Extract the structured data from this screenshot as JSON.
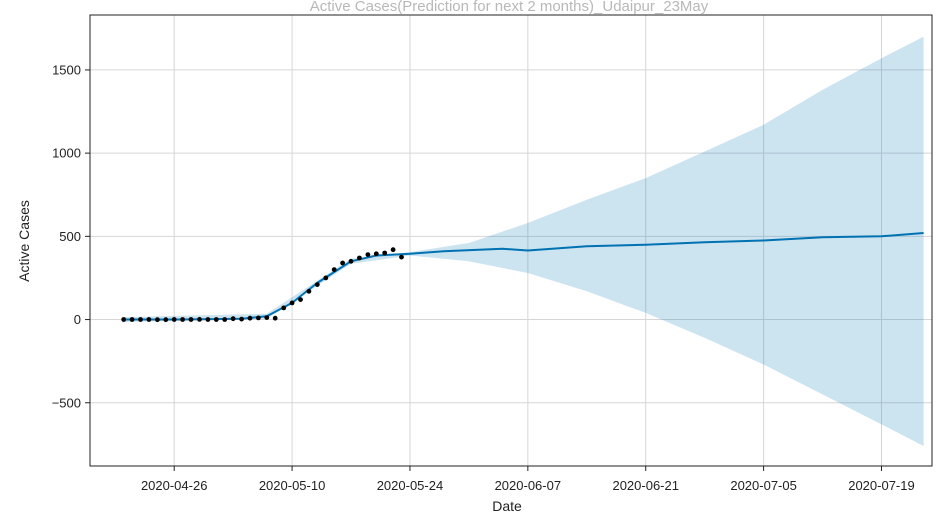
{
  "chart_data": {
    "type": "line",
    "title": "Active Cases(Prediction for next 2 months)_Udaipur_23May",
    "xlabel": "Date",
    "ylabel": "Active Cases",
    "xlim": [
      "2020-04-16",
      "2020-07-25"
    ],
    "ylim": [
      -880,
      1830
    ],
    "x_ticks": [
      "2020-04-26",
      "2020-05-10",
      "2020-05-24",
      "2020-06-07",
      "2020-06-21",
      "2020-07-05",
      "2020-07-19"
    ],
    "y_ticks": [
      -500,
      0,
      500,
      1000,
      1500
    ],
    "grid": true,
    "colors": {
      "observed": "#000000",
      "forecast": "#0072b2",
      "interval": "#0072b2"
    },
    "observed": {
      "x": [
        "2020-04-20",
        "2020-04-21",
        "2020-04-22",
        "2020-04-23",
        "2020-04-24",
        "2020-04-25",
        "2020-04-26",
        "2020-04-27",
        "2020-04-28",
        "2020-04-29",
        "2020-04-30",
        "2020-05-01",
        "2020-05-02",
        "2020-05-03",
        "2020-05-04",
        "2020-05-05",
        "2020-05-06",
        "2020-05-07",
        "2020-05-08",
        "2020-05-09",
        "2020-05-10",
        "2020-05-11",
        "2020-05-12",
        "2020-05-13",
        "2020-05-14",
        "2020-05-15",
        "2020-05-16",
        "2020-05-17",
        "2020-05-18",
        "2020-05-19",
        "2020-05-20",
        "2020-05-21",
        "2020-05-22",
        "2020-05-23"
      ],
      "y": [
        0,
        0,
        0,
        0,
        -1,
        -1,
        0,
        0,
        0,
        1,
        0,
        0,
        0,
        5,
        3,
        8,
        10,
        12,
        8,
        70,
        100,
        120,
        170,
        210,
        250,
        300,
        340,
        350,
        370,
        390,
        395,
        400,
        420,
        375
      ]
    },
    "forecast": {
      "x": [
        "2020-04-20",
        "2020-04-27",
        "2020-05-04",
        "2020-05-07",
        "2020-05-10",
        "2020-05-13",
        "2020-05-17",
        "2020-05-20",
        "2020-05-24",
        "2020-05-28",
        "2020-06-04",
        "2020-06-07",
        "2020-06-14",
        "2020-06-21",
        "2020-06-28",
        "2020-07-05",
        "2020-07-12",
        "2020-07-19",
        "2020-07-24"
      ],
      "y": [
        0,
        0,
        5,
        20,
        100,
        220,
        350,
        385,
        395,
        410,
        425,
        415,
        440,
        450,
        465,
        475,
        495,
        500,
        520
      ]
    },
    "interval": {
      "x": [
        "2020-04-20",
        "2020-05-07",
        "2020-05-17",
        "2020-05-24",
        "2020-05-31",
        "2020-06-07",
        "2020-06-14",
        "2020-06-21",
        "2020-06-28",
        "2020-07-05",
        "2020-07-12",
        "2020-07-19",
        "2020-07-24"
      ],
      "lower": [
        -15,
        5,
        335,
        385,
        350,
        280,
        170,
        40,
        -110,
        -270,
        -450,
        -630,
        -760
      ],
      "upper": [
        15,
        35,
        365,
        405,
        460,
        580,
        720,
        850,
        1010,
        1170,
        1380,
        1570,
        1700
      ]
    }
  }
}
